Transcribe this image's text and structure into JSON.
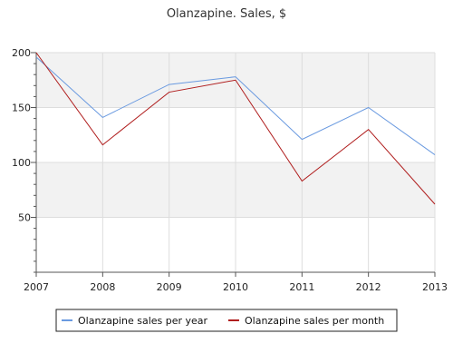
{
  "chart_data": {
    "type": "line",
    "title": "Olanzapine. Sales, $",
    "xlabel": "",
    "ylabel": "",
    "categories": [
      "2007",
      "2008",
      "2009",
      "2010",
      "2011",
      "2012",
      "2013"
    ],
    "ylim": [
      0,
      200
    ],
    "yticks": [
      50,
      100,
      150,
      200
    ],
    "grid": true,
    "legend_position": "bottom",
    "series": [
      {
        "name": "Olanzapine sales per year",
        "color": "#6a9ae0",
        "values": [
          196,
          141,
          171,
          178,
          121,
          150,
          107
        ]
      },
      {
        "name": "Olanzapine sales per month",
        "color": "#b01e1e",
        "values": [
          200,
          116,
          164,
          175,
          83,
          130,
          62
        ]
      }
    ]
  }
}
